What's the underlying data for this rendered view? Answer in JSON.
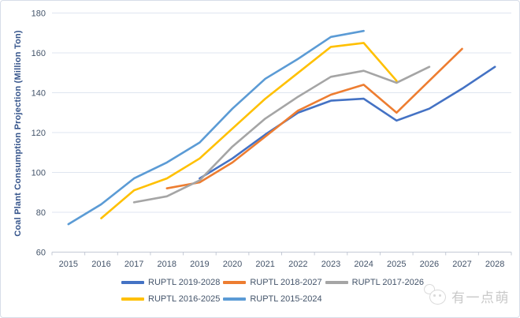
{
  "watermark": {
    "text": "有一点萌",
    "icon": "two-faces-icon"
  },
  "legend": {
    "rows": [
      [
        0,
        1,
        2
      ],
      [
        3,
        4
      ]
    ]
  },
  "chart_data": {
    "type": "line",
    "title": "",
    "xlabel": "",
    "ylabel": "Coal Plant Consumption Projection (Million Ton)",
    "ylim": [
      60,
      180
    ],
    "yticks": [
      60,
      80,
      100,
      120,
      140,
      160,
      180
    ],
    "categories": [
      "2015",
      "2016",
      "2017",
      "2018",
      "2019",
      "2020",
      "2021",
      "2022",
      "2023",
      "2024",
      "2025",
      "2026",
      "2027",
      "2028"
    ],
    "x_start_year": 2015,
    "grid": "horizontal",
    "legend_position": "bottom",
    "series": [
      {
        "name": "RUPTL 2019-2028",
        "color": "#4472C4",
        "start_year": 2019,
        "values": [
          97,
          107,
          119,
          130,
          136,
          137,
          126,
          132,
          142,
          153
        ]
      },
      {
        "name": "RUPTL 2018-2027",
        "color": "#ED7D31",
        "start_year": 2018,
        "values": [
          92,
          95,
          105,
          118,
          131,
          139,
          144,
          130,
          146,
          162
        ]
      },
      {
        "name": "RUPTL 2017-2026",
        "color": "#A5A5A5",
        "start_year": 2017,
        "values": [
          85,
          88,
          96,
          113,
          127,
          138,
          148,
          151,
          145,
          153
        ]
      },
      {
        "name": "RUPTL 2016-2025",
        "color": "#FFC000",
        "start_year": 2016,
        "values": [
          77,
          91,
          97,
          107,
          122,
          137,
          150,
          163,
          165,
          146
        ]
      },
      {
        "name": "RUPTL 2015-2024",
        "color": "#5B9BD5",
        "start_year": 2015,
        "values": [
          74,
          84,
          97,
          105,
          115,
          132,
          147,
          157,
          168,
          171
        ]
      }
    ],
    "axis_colors": {
      "tick_label": "#44546a",
      "gridline": "#dfe5f0",
      "axis_line": "#c3c9d5"
    }
  }
}
